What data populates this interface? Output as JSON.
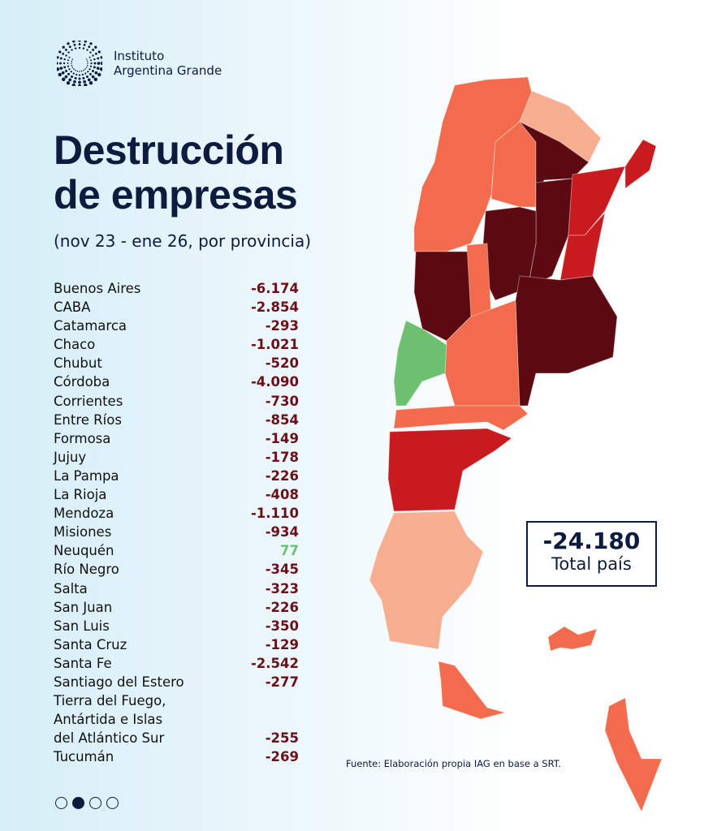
{
  "brand": {
    "line1": "Instituto",
    "line2": "Argentina Grande"
  },
  "title": {
    "line1": "Destrucción",
    "line2": "de empresas"
  },
  "subtitle": "(nov 23 - ene 26, por provincia)",
  "provinces": [
    {
      "name": "Buenos Aires",
      "value": "-6.174"
    },
    {
      "name": "CABA",
      "value": "-2.854"
    },
    {
      "name": "Catamarca",
      "value": "-293"
    },
    {
      "name": "Chaco",
      "value": "-1.021"
    },
    {
      "name": "Chubut",
      "value": "-520"
    },
    {
      "name": "Córdoba",
      "value": "-4.090"
    },
    {
      "name": "Corrientes",
      "value": "-730"
    },
    {
      "name": "Entre Ríos",
      "value": "-854"
    },
    {
      "name": "Formosa",
      "value": "-149"
    },
    {
      "name": "Jujuy",
      "value": "-178"
    },
    {
      "name": "La Pampa",
      "value": "-226"
    },
    {
      "name": "La Rioja",
      "value": "-408"
    },
    {
      "name": "Mendoza",
      "value": "-1.110"
    },
    {
      "name": "Misiones",
      "value": "-934"
    },
    {
      "name": "Neuquén",
      "value": "77"
    },
    {
      "name": "Río Negro",
      "value": "-345"
    },
    {
      "name": "Salta",
      "value": "-323"
    },
    {
      "name": "San Juan",
      "value": "-226"
    },
    {
      "name": "San Luis",
      "value": "-350"
    },
    {
      "name": "Santa Cruz",
      "value": "-129"
    },
    {
      "name": "Santa Fe",
      "value": "-2.542"
    },
    {
      "name": "Santiago del Estero",
      "value": "-277"
    },
    {
      "name": "Tierra del Fuego, Antártida e Islas del Atlántico Sur",
      "name_lines": [
        "Tierra del Fuego,",
        "Antártida e Islas",
        "del Atlántico Sur"
      ],
      "value": "-255"
    },
    {
      "name": "Tucumán",
      "value": "-269"
    }
  ],
  "total": {
    "value": "-24.180",
    "label": "Total país"
  },
  "source": "Fuente: Elaboración propia IAG en base a SRT.",
  "pagination": {
    "pages": 4,
    "current": 2
  },
  "colors": {
    "darkest": "#5c0a12",
    "red": "#c81a1f",
    "orange": "#f26b4c",
    "light": "#f7ad90",
    "positive": "#6cc070",
    "navy": "#0d1b3e"
  }
}
